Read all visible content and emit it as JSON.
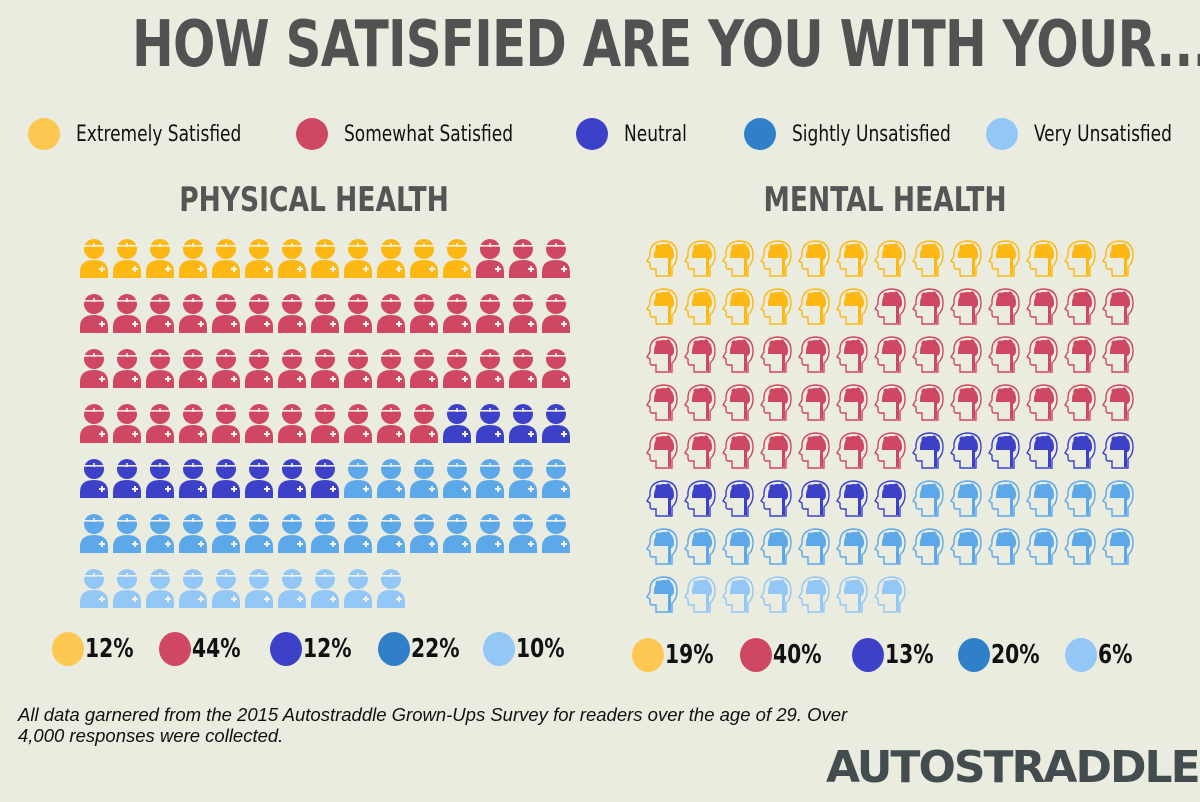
{
  "title": "HOW SATISFIED ARE YOU WITH YOUR...",
  "legend": [
    {
      "label": "Extremely Satisfied",
      "color": "#fdc851"
    },
    {
      "label": "Somewhat Satisfied",
      "color": "#d04763"
    },
    {
      "label": "Neutral",
      "color": "#3d41c8"
    },
    {
      "label": "Sightly Unsatisfied",
      "color": "#2f80c8"
    },
    {
      "label": "Very Unsatisfied",
      "color": "#93c7f5"
    }
  ],
  "footer": "All data garnered from the 2015 Autostraddle Grown-Ups Survey for readers over the age of 29. Over 4,000 responses were collected.",
  "logo": "AUTOSTRADDLE",
  "chart_data": [
    {
      "type": "pictogram",
      "title": "PHYSICAL HEALTH",
      "icon": "person-medical-icon",
      "categories": [
        "Extremely Satisfied",
        "Somewhat Satisfied",
        "Neutral",
        "Sightly Unsatisfied",
        "Very Unsatisfied"
      ],
      "values": [
        12,
        44,
        12,
        22,
        10
      ],
      "labels": [
        "12%",
        "44%",
        "12%",
        "22%",
        "10%"
      ],
      "icon_colors": [
        "#fdb813",
        "#d04763",
        "#3d41c8",
        "#5da8e8",
        "#93c7f5"
      ],
      "per_row": 15
    },
    {
      "type": "pictogram",
      "title": "MENTAL HEALTH",
      "icon": "head-brain-icon",
      "categories": [
        "Extremely Satisfied",
        "Somewhat Satisfied",
        "Neutral",
        "Sightly Unsatisfied",
        "Very Unsatisfied"
      ],
      "values": [
        19,
        40,
        13,
        20,
        6
      ],
      "labels": [
        "19%",
        "40%",
        "13%",
        "20%",
        "6%"
      ],
      "icon_colors": [
        "#fdb813",
        "#d04763",
        "#3d41c8",
        "#5da8e8",
        "#93c7f5"
      ],
      "per_row": 13
    }
  ]
}
